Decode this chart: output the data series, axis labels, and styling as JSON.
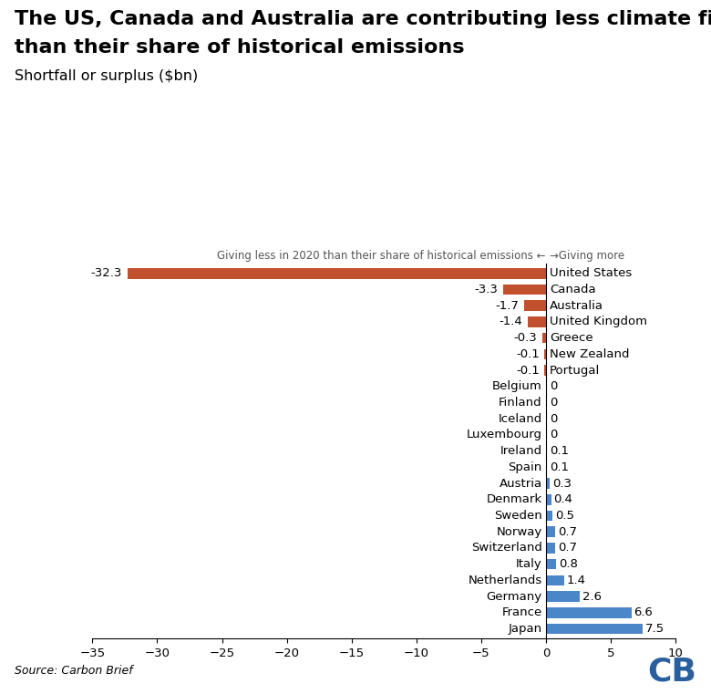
{
  "title_line1": "The US, Canada and Australia are contributing less climate finance",
  "title_line2": "than their share of historical emissions",
  "subtitle": "Shortfall or surplus ($bn)",
  "annotation_left": "Giving less in 2020 than their share of historical emissions ←",
  "annotation_right": "→Giving more",
  "source": "Source: Carbon Brief",
  "countries": [
    "United States",
    "Canada",
    "Australia",
    "United Kingdom",
    "Greece",
    "New Zealand",
    "Portugal",
    "Belgium",
    "Finland",
    "Iceland",
    "Luxembourg",
    "Ireland",
    "Spain",
    "Austria",
    "Denmark",
    "Sweden",
    "Norway",
    "Switzerland",
    "Italy",
    "Netherlands",
    "Germany",
    "France",
    "Japan"
  ],
  "values": [
    -32.3,
    -3.3,
    -1.7,
    -1.4,
    -0.3,
    -0.1,
    -0.1,
    0.0,
    0.0,
    0.0,
    0.0,
    0.1,
    0.1,
    0.3,
    0.4,
    0.5,
    0.7,
    0.7,
    0.8,
    1.4,
    2.6,
    6.6,
    7.5
  ],
  "value_labels": [
    "-32.3",
    "-3.3",
    "-1.7",
    "-1.4",
    "-0.3",
    "-0.1",
    "-0.1",
    "0",
    "0",
    "0",
    "0",
    "0.1",
    "0.1",
    "0.3",
    "0.4",
    "0.5",
    "0.7",
    "0.7",
    "0.8",
    "1.4",
    "2.6",
    "6.6",
    "7.5"
  ],
  "negative_color": "#C1502E",
  "positive_color": "#4A86C8",
  "xlim": [
    -35,
    10
  ],
  "xticks": [
    -35,
    -30,
    -25,
    -20,
    -15,
    -10,
    -5,
    0,
    5,
    10
  ],
  "background_color": "#FFFFFF",
  "title_fontsize": 16,
  "subtitle_fontsize": 11.5,
  "label_fontsize": 9.5,
  "tick_fontsize": 9.5,
  "annotation_fontsize": 8.5,
  "cb_color": "#2A5F9E",
  "figsize": [
    7.8,
    7.61
  ],
  "dpi": 100
}
